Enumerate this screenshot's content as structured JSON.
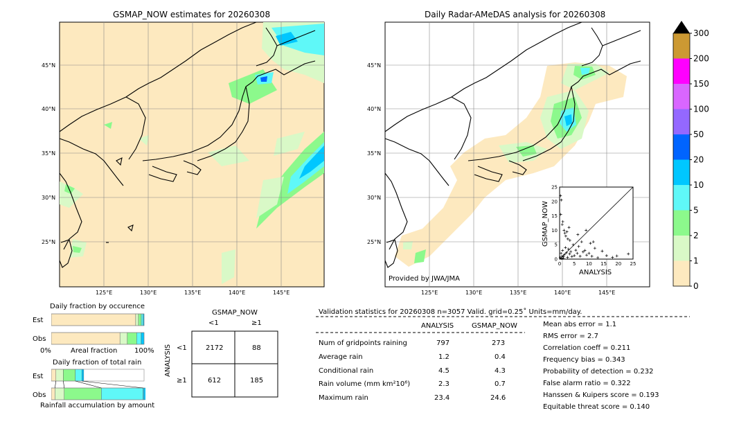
{
  "left_map": {
    "title": "GSMAP_NOW estimates for 20260308",
    "lat_labels": [
      "45°N",
      "40°N",
      "35°N",
      "30°N",
      "25°N"
    ],
    "lon_labels": [
      "125°E",
      "130°E",
      "135°E",
      "140°E",
      "145°E"
    ]
  },
  "right_map": {
    "title": "Daily Radar-AMeDAS analysis for 20260308",
    "lat_labels": [
      "45°N",
      "40°N",
      "35°N",
      "30°N",
      "25°N"
    ],
    "lon_labels": [
      "125°E",
      "130°E",
      "135°E",
      "140°E",
      "145°E"
    ],
    "credit": "Provided by JWA/JMA"
  },
  "colorbar": {
    "levels": [
      "0",
      "1",
      "2",
      "5",
      "10",
      "20",
      "50",
      "100",
      "150",
      "200",
      "300"
    ],
    "colors": [
      "#fde9bf",
      "#d9f9c7",
      "#8cf98c",
      "#5ff8f8",
      "#00c7ff",
      "#0064ff",
      "#9468ff",
      "#d966ff",
      "#ff00ff",
      "#cc9933"
    ]
  },
  "scatter": {
    "xlabel": "ANALYSIS",
    "ylabel": "GSMAP_NOW",
    "ticks": [
      "0",
      "5",
      "10",
      "15",
      "20",
      "25"
    ]
  },
  "fraction_occurrence": {
    "title": "Daily fraction by occurence",
    "rows": [
      "Est",
      "Obs"
    ],
    "axis_left": "0%",
    "axis_mid": "Areal fraction",
    "axis_right": "100%"
  },
  "fraction_rain": {
    "title": "Daily fraction of total rain",
    "rows": [
      "Est",
      "Obs"
    ],
    "footer": "Rainfall accumulation by amount"
  },
  "contingency": {
    "title": "GSMAP_NOW",
    "col_labels": [
      "<1",
      "≥1"
    ],
    "row_labels": [
      "<1",
      "≥1"
    ],
    "side_label": "ANALYSIS",
    "cells": [
      [
        "2172",
        "88"
      ],
      [
        "612",
        "185"
      ]
    ]
  },
  "validation": {
    "header": "Validation statistics for 20260308  n=3057 Valid. grid=0.25˚ Units=mm/day.",
    "col_headers": [
      "ANALYSIS",
      "GSMAP_NOW"
    ],
    "rows": [
      {
        "label": "Num of gridpoints raining",
        "analysis": "797",
        "gsmap": "273"
      },
      {
        "label": "Average rain",
        "analysis": "1.2",
        "gsmap": "0.4"
      },
      {
        "label": "Conditional rain",
        "analysis": "4.5",
        "gsmap": "4.3"
      },
      {
        "label": "Rain volume (mm km²10⁶)",
        "analysis": "2.3",
        "gsmap": "0.7"
      },
      {
        "label": "Maximum rain",
        "analysis": "23.4",
        "gsmap": "24.6"
      }
    ],
    "scores": [
      "Mean abs error =    1.1",
      "RMS error =    2.7",
      "Correlation coeff =  0.211",
      "Frequency bias =  0.343",
      "Probability of detection =  0.232",
      "False alarm ratio =  0.322",
      "Hanssen & Kuipers score =  0.193",
      "Equitable threat score =  0.140"
    ]
  },
  "chart_data": [
    {
      "type": "heatmap",
      "title": "GSMAP_NOW estimates for 20260308",
      "xlabel": "",
      "ylabel": "",
      "xlim": [
        120,
        149
      ],
      "ylim": [
        20,
        50
      ]
    },
    {
      "type": "heatmap",
      "title": "Daily Radar-AMeDAS analysis for 20260308",
      "xlabel": "",
      "ylabel": "",
      "xlim": [
        120,
        149
      ],
      "ylim": [
        20,
        50
      ]
    },
    {
      "type": "scatter",
      "title": "",
      "xlabel": "ANALYSIS",
      "ylabel": "GSMAP_NOW",
      "xlim": [
        0,
        25
      ],
      "ylim": [
        0,
        25
      ],
      "x": [
        0.2,
        0.5,
        0.8,
        1.0,
        1.3,
        1.6,
        2.0,
        2.3,
        2.7,
        3.0,
        3.4,
        3.8,
        4.2,
        4.6,
        5.0,
        5.5,
        6.0,
        6.5,
        7.0,
        7.5,
        8.0,
        8.6,
        9.2,
        10.0,
        10.5,
        11.0,
        12.0,
        13.0,
        14.5,
        16.0,
        18.0,
        19.5,
        23.4,
        0.3,
        0.6,
        1.1,
        1.5,
        2.1,
        2.8,
        3.5,
        0.4,
        0.9,
        1.8,
        2.5,
        3.2,
        6.2,
        9.0,
        11.5,
        0.7,
        1.2
      ],
      "y": [
        0.5,
        2.0,
        1.0,
        3.0,
        0.8,
        1.5,
        4.0,
        2.2,
        0.6,
        3.5,
        1.8,
        2.6,
        0.9,
        5.0,
        1.2,
        3.1,
        2.0,
        4.4,
        1.0,
        6.0,
        2.5,
        3.0,
        1.4,
        2.0,
        5.5,
        1.0,
        3.8,
        0.5,
        2.8,
        1.2,
        0.6,
        1.1,
        1.8,
        22.0,
        20.5,
        13.0,
        10.0,
        8.0,
        7.0,
        6.5,
        15.5,
        12.0,
        9.0,
        9.5,
        11.0,
        8.5,
        10.0,
        6.0,
        0.2,
        0.3
      ]
    },
    {
      "type": "bar",
      "title": "Daily fraction by occurence",
      "categories": [
        "Est",
        "Obs"
      ],
      "series": [
        {
          "values": [
            0.91,
            0.74
          ]
        },
        {
          "values": [
            0.03,
            0.08
          ]
        },
        {
          "values": [
            0.03,
            0.1
          ]
        },
        {
          "values": [
            0.02,
            0.05
          ]
        },
        {
          "values": [
            0.01,
            0.03
          ]
        }
      ],
      "xlabel": "Areal fraction",
      "ylabel": "",
      "xlim": [
        0,
        1
      ]
    },
    {
      "type": "bar",
      "title": "Daily fraction of total rain",
      "categories": [
        "Est",
        "Obs"
      ],
      "series": [
        {
          "values": [
            0.05,
            0.04
          ]
        },
        {
          "values": [
            0.08,
            0.1
          ]
        },
        {
          "values": [
            0.13,
            0.4
          ]
        },
        {
          "values": [
            0.07,
            0.45
          ]
        },
        {
          "values": [
            0.02,
            0.05
          ]
        }
      ],
      "xlabel": "Rainfall accumulation by amount",
      "ylabel": "",
      "xlim": [
        0,
        1
      ]
    },
    {
      "type": "table",
      "title": "GSMAP_NOW",
      "columns": [
        "<1",
        "≥1"
      ],
      "rows": [
        [
          "2172",
          "88"
        ],
        [
          "612",
          "185"
        ]
      ]
    }
  ]
}
